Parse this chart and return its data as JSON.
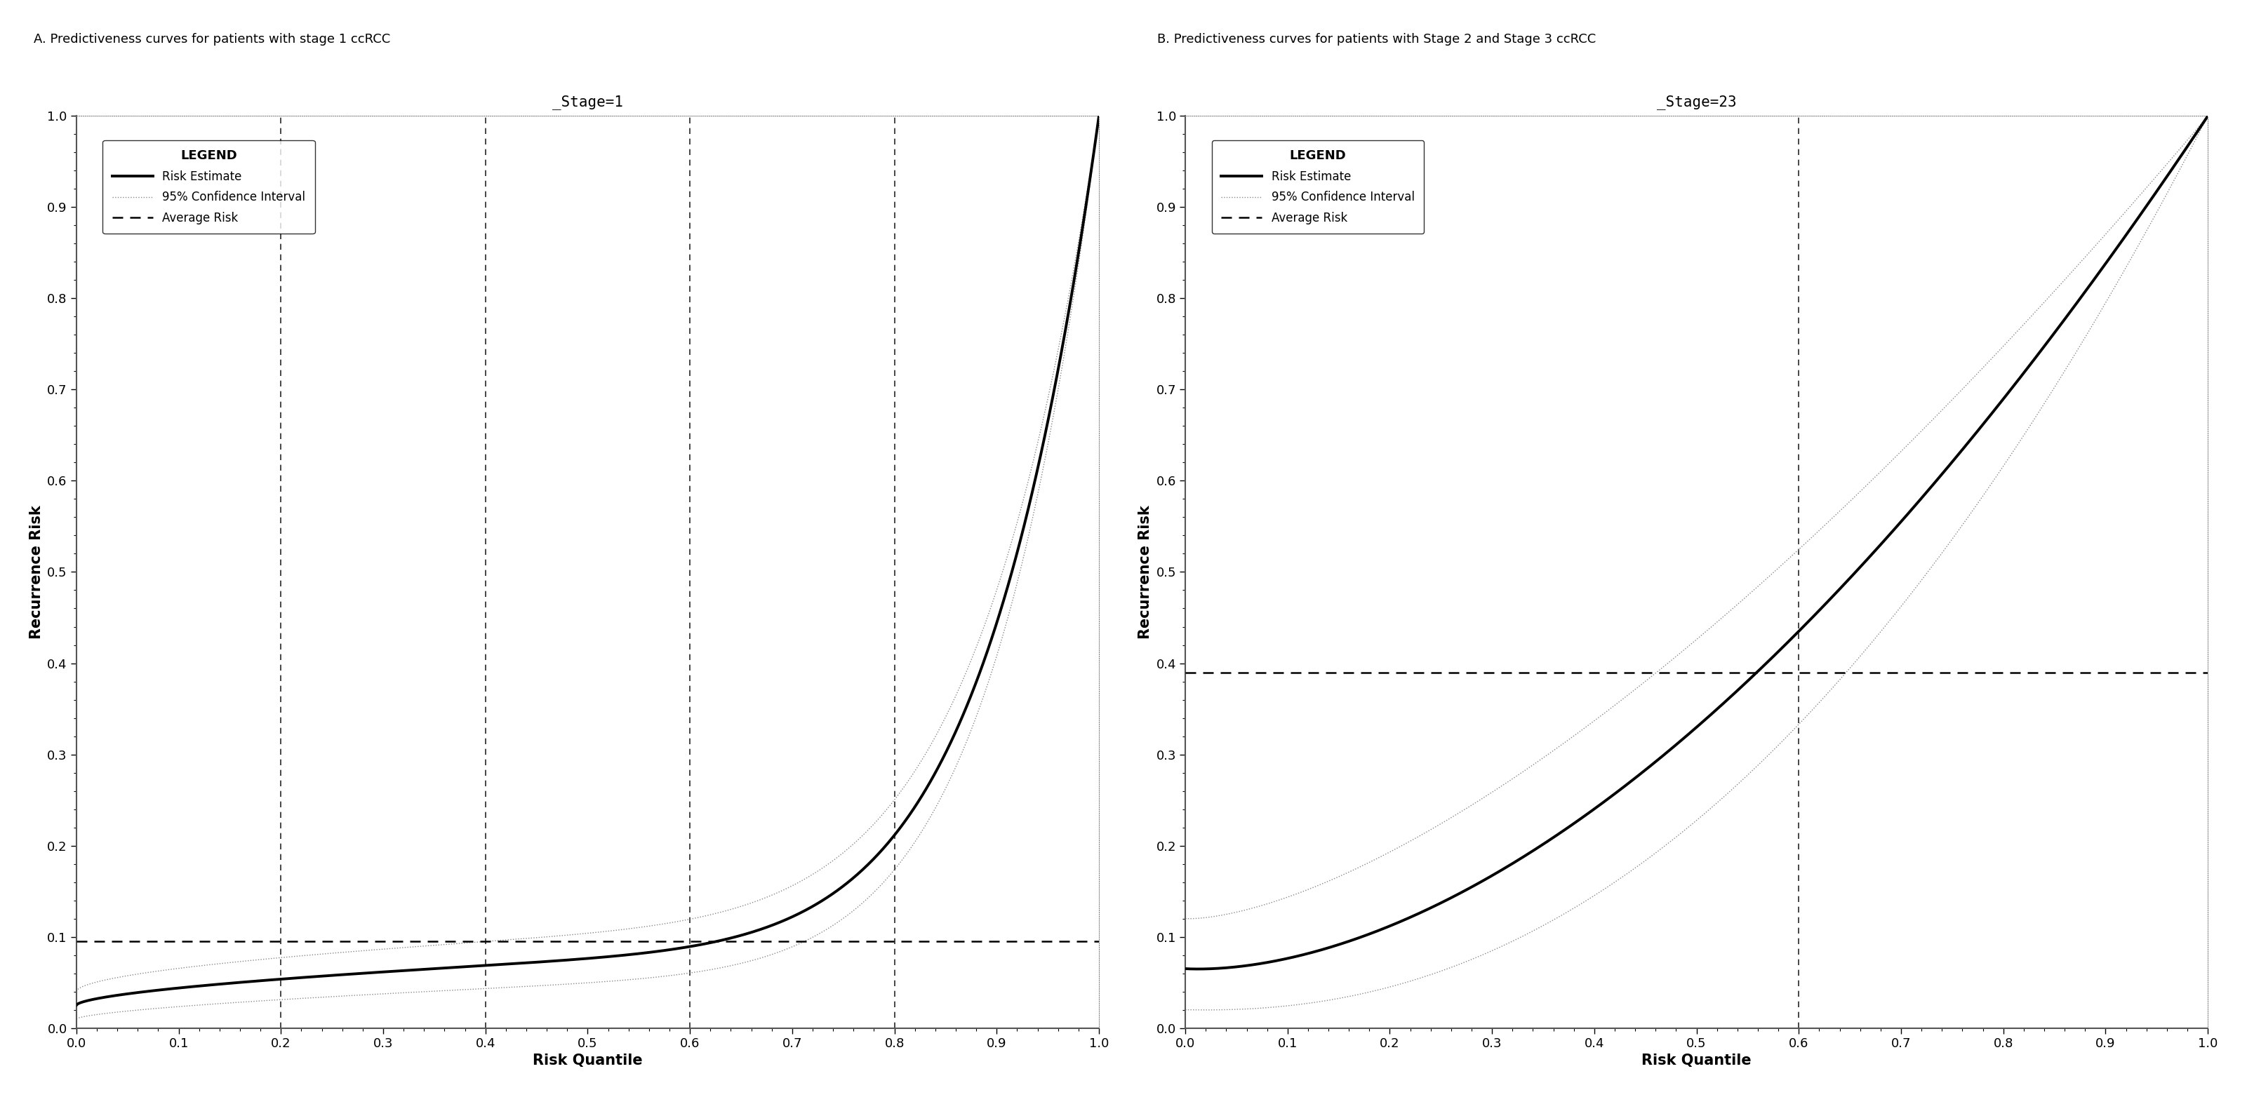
{
  "panel_a_title": "A. Predictiveness curves for patients with stage 1 ccRCC",
  "panel_b_title": "B. Predictiveness curves for patients with Stage 2 and Stage 3 ccRCC",
  "subplot_title_a": "_Stage=1",
  "subplot_title_b": "_Stage=23",
  "xlabel": "Risk Quantile",
  "ylabel": "Recurrence Risk",
  "legend_title": "LEGEND",
  "legend_risk_estimate": "Risk Estimate",
  "legend_ci": "95% Confidence Interval",
  "legend_avg": "Average Risk",
  "xlim": [
    0.0,
    1.0
  ],
  "ylim": [
    0.0,
    1.0
  ],
  "avg_risk_a": 0.095,
  "avg_risk_b": 0.39,
  "vlines_a": [
    0.2,
    0.4,
    0.6,
    0.8
  ],
  "vlines_b": [
    0.6
  ],
  "bg_color": "#ffffff",
  "plot_bg_color": "#ffffff"
}
